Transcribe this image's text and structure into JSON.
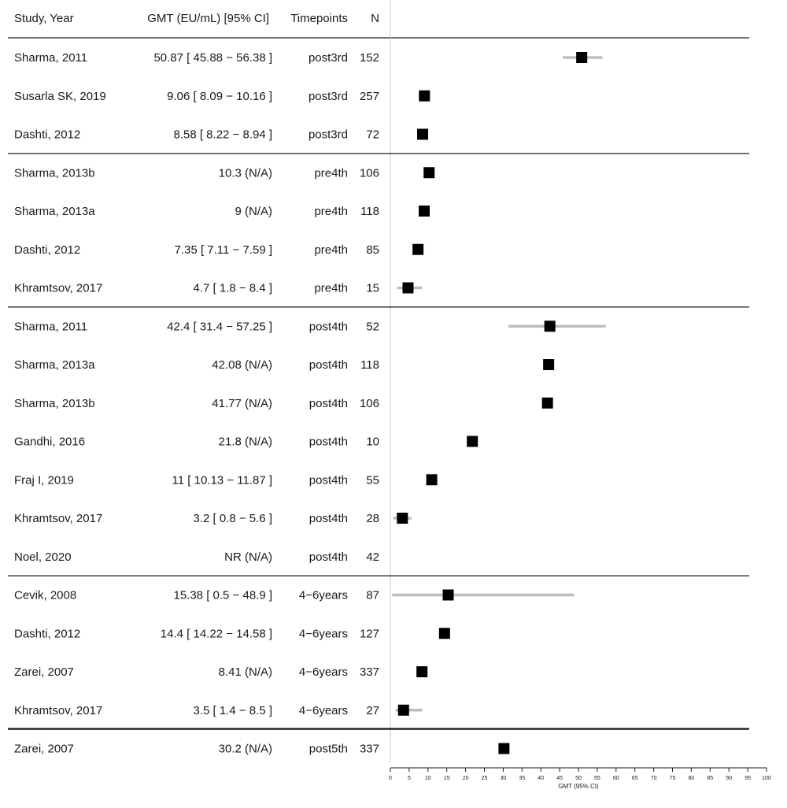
{
  "headers": {
    "study": "Study, Year",
    "gmt": "GMT (EU/mL) [95% CI]",
    "timepoints": "Timepoints",
    "n": "N"
  },
  "chart_data": {
    "type": "forest",
    "xlabel": "GMT (95% CI)",
    "xlim": [
      0,
      100
    ],
    "xticks": [
      0,
      5,
      10,
      15,
      20,
      25,
      30,
      35,
      40,
      45,
      50,
      55,
      60,
      65,
      70,
      75,
      80,
      85,
      90,
      95,
      100
    ],
    "groups": [
      {
        "rows": [
          {
            "study": "Sharma, 2011",
            "gmt_text": "50.87 [ 45.88 − 56.38 ]",
            "timepoint": "post3rd",
            "n": "152",
            "est": 50.87,
            "lo": 45.88,
            "hi": 56.38
          },
          {
            "study": "Susarla SK, 2019",
            "gmt_text": "9.06 [ 8.09 − 10.16 ]",
            "timepoint": "post3rd",
            "n": "257",
            "est": 9.06,
            "lo": 8.09,
            "hi": 10.16
          },
          {
            "study": "Dashti, 2012",
            "gmt_text": "8.58 [ 8.22 − 8.94 ]",
            "timepoint": "post3rd",
            "n": "72",
            "est": 8.58,
            "lo": 8.22,
            "hi": 8.94
          }
        ]
      },
      {
        "rows": [
          {
            "study": "Sharma, 2013b",
            "gmt_text": "10.3 (N/A)",
            "timepoint": "pre4th",
            "n": "106",
            "est": 10.3,
            "lo": null,
            "hi": null
          },
          {
            "study": "Sharma, 2013a",
            "gmt_text": "9 (N/A)",
            "timepoint": "pre4th",
            "n": "118",
            "est": 9,
            "lo": null,
            "hi": null
          },
          {
            "study": "Dashti, 2012",
            "gmt_text": "7.35 [ 7.11 − 7.59 ]",
            "timepoint": "pre4th",
            "n": "85",
            "est": 7.35,
            "lo": 7.11,
            "hi": 7.59
          },
          {
            "study": "Khramtsov, 2017",
            "gmt_text": "4.7 [ 1.8 − 8.4 ]",
            "timepoint": "pre4th",
            "n": "15",
            "est": 4.7,
            "lo": 1.8,
            "hi": 8.4
          }
        ]
      },
      {
        "rows": [
          {
            "study": "Sharma, 2011",
            "gmt_text": "42.4 [ 31.4 − 57.25 ]",
            "timepoint": "post4th",
            "n": "52",
            "est": 42.4,
            "lo": 31.4,
            "hi": 57.25
          },
          {
            "study": "Sharma, 2013a",
            "gmt_text": "42.08 (N/A)",
            "timepoint": "post4th",
            "n": "118",
            "est": 42.08,
            "lo": null,
            "hi": null
          },
          {
            "study": "Sharma, 2013b",
            "gmt_text": "41.77 (N/A)",
            "timepoint": "post4th",
            "n": "106",
            "est": 41.77,
            "lo": null,
            "hi": null
          },
          {
            "study": "Gandhi, 2016",
            "gmt_text": "21.8 (N/A)",
            "timepoint": "post4th",
            "n": "10",
            "est": 21.8,
            "lo": null,
            "hi": null
          },
          {
            "study": "Fraj I, 2019",
            "gmt_text": "11 [ 10.13 − 11.87 ]",
            "timepoint": "post4th",
            "n": "55",
            "est": 11,
            "lo": 10.13,
            "hi": 11.87
          },
          {
            "study": "Khramtsov, 2017",
            "gmt_text": "3.2 [ 0.8 − 5.6 ]",
            "timepoint": "post4th",
            "n": "28",
            "est": 3.2,
            "lo": 0.8,
            "hi": 5.6
          },
          {
            "study": "Noel, 2020",
            "gmt_text": "NR (N/A)",
            "timepoint": "post4th",
            "n": "42",
            "est": null,
            "lo": null,
            "hi": null
          }
        ]
      },
      {
        "rows": [
          {
            "study": "Cevik, 2008",
            "gmt_text": "15.38 [ 0.5 − 48.9 ]",
            "timepoint": "4−6years",
            "n": "87",
            "est": 15.38,
            "lo": 0.5,
            "hi": 48.9
          },
          {
            "study": "Dashti, 2012",
            "gmt_text": "14.4 [ 14.22 − 14.58 ]",
            "timepoint": "4−6years",
            "n": "127",
            "est": 14.4,
            "lo": 14.22,
            "hi": 14.58
          },
          {
            "study": "Zarei, 2007",
            "gmt_text": "8.41 (N/A)",
            "timepoint": "4−6years",
            "n": "337",
            "est": 8.41,
            "lo": null,
            "hi": null
          },
          {
            "study": "Khramtsov, 2017",
            "gmt_text": "3.5 [ 1.4 − 8.5 ]",
            "timepoint": "4−6years",
            "n": "27",
            "est": 3.5,
            "lo": 1.4,
            "hi": 8.5
          }
        ]
      },
      {
        "rows": [
          {
            "study": "Zarei, 2007",
            "gmt_text": "30.2 (N/A)",
            "timepoint": "post5th",
            "n": "337",
            "est": 30.2,
            "lo": null,
            "hi": null
          }
        ]
      }
    ]
  },
  "colors": {
    "marker": "#000000",
    "ci_line": "#bdbdbd",
    "rule": "#1a1a1a",
    "ref_line": "#c8c8c8"
  }
}
